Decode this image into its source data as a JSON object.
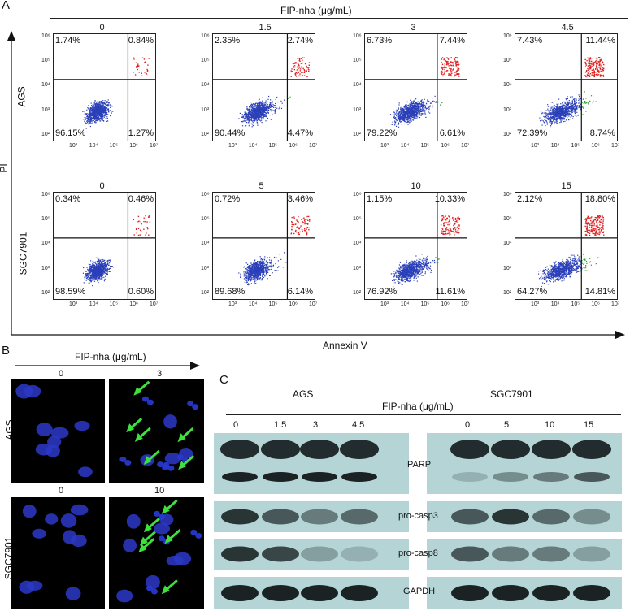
{
  "panelA": {
    "letter": "A",
    "header": "FIP-nha (μg/mL)",
    "yaxis": "PI",
    "xaxis": "Annexin V",
    "rows": [
      {
        "label": "AGS",
        "plots": [
          {
            "dose": "0",
            "ul": "1.74%",
            "ur": "0.84%",
            "ll": "96.15%",
            "lr": "1.27%"
          },
          {
            "dose": "1.5",
            "ul": "2.35%",
            "ur": "2.74%",
            "ll": "90.44%",
            "lr": "4.47%"
          },
          {
            "dose": "3",
            "ul": "6.73%",
            "ur": "7.44%",
            "ll": "79.22%",
            "lr": "6.61%"
          },
          {
            "dose": "4.5",
            "ul": "7.43%",
            "ur": "11.44%",
            "ll": "72.39%",
            "lr": "8.74%"
          }
        ]
      },
      {
        "label": "SGC7901",
        "plots": [
          {
            "dose": "0",
            "ul": "0.34%",
            "ur": "0.46%",
            "ll": "98.59%",
            "lr": "0.60%"
          },
          {
            "dose": "5",
            "ul": "0.72%",
            "ur": "3.46%",
            "ll": "89.68%",
            "lr": "6.14%"
          },
          {
            "dose": "10",
            "ul": "1.15%",
            "ur": "10.33%",
            "ll": "76.92%",
            "lr": "11.61%"
          },
          {
            "dose": "15",
            "ul": "2.12%",
            "ur": "18.80%",
            "ll": "64.27%",
            "lr": "14.81%"
          }
        ]
      }
    ],
    "yticks": [
      "10⁶",
      "10⁵",
      "10⁴",
      "10³",
      "10²"
    ],
    "xticks": [
      "10³",
      "10⁴",
      "10⁵",
      "10⁶",
      "10⁷"
    ]
  },
  "panelB": {
    "letter": "B",
    "header": "FIP-nha (μg/mL)",
    "rows": [
      {
        "label": "AGS",
        "doses": [
          "0",
          "3"
        ]
      },
      {
        "label": "SGC7901",
        "doses": [
          "0",
          "10"
        ]
      }
    ]
  },
  "panelC": {
    "letter": "C",
    "group1": "AGS",
    "group2": "SGC7901",
    "header": "FIP-nha (μg/mL)",
    "doses1": [
      "0",
      "1.5",
      "3",
      "4.5"
    ],
    "doses2": [
      "0",
      "5",
      "10",
      "15"
    ],
    "proteins": [
      "PARP",
      "pro-casp3",
      "pro-casp8",
      "GAPDH"
    ]
  },
  "colors": {
    "live": "#2a3fb8",
    "early": "#2c9a2c",
    "late": "#e02020",
    "necrotic": "#a050c0",
    "blot_bg": "#b4d4d6",
    "band": "#1a2224"
  }
}
